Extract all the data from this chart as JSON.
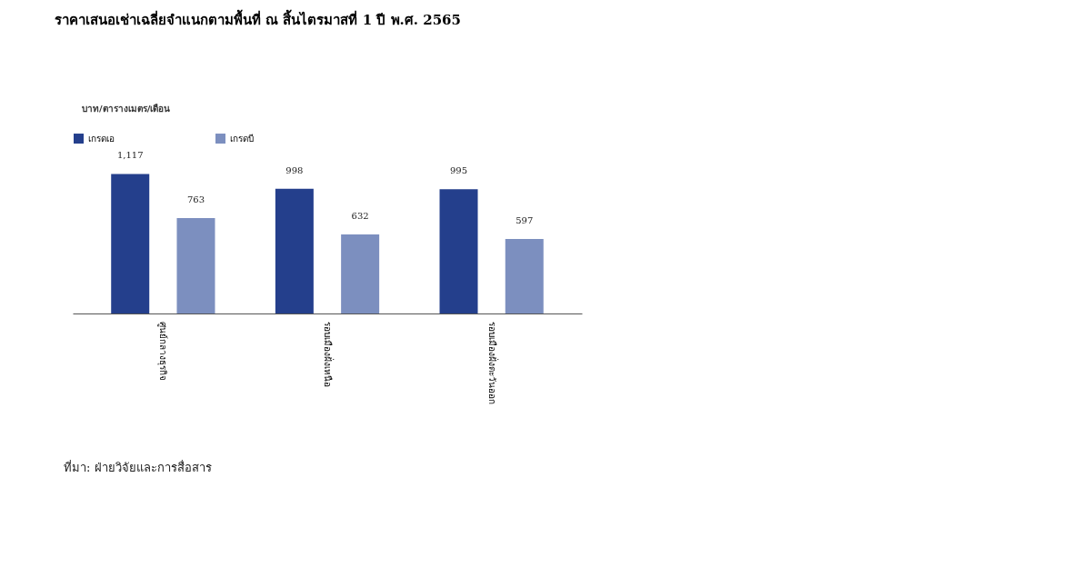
{
  "chart_data": {
    "type": "bar",
    "title": "ราคาเสนอเช่าเฉลี่ยจำแนกตามพื้นที่ ณ สิ้นไตรมาสที่ 1 ปี พ.ศ. 2565",
    "categories": [
      "ศูนย์กลางธุรกิจ",
      "รอบเมืองฝั่งเหนือ",
      "รอบเมืองฝั่งตะวันออก"
    ],
    "series": [
      {
        "name": "เกรดเอ",
        "color": "#243f8c",
        "values": [
          1117,
          998,
          995
        ],
        "value_labels": [
          "1,117",
          "998",
          "995"
        ]
      },
      {
        "name": "เกรดบี",
        "color": "#7c8fbf",
        "values": [
          763,
          632,
          597
        ],
        "value_labels": [
          "763",
          "632",
          "597"
        ]
      }
    ],
    "legend": "top",
    "grid": false,
    "annotations": [
      "บาท/ตารางเมตร/เดือน",
      "ที่มา: ฝ่ายวิจัยและการสื่อสาร"
    ]
  }
}
